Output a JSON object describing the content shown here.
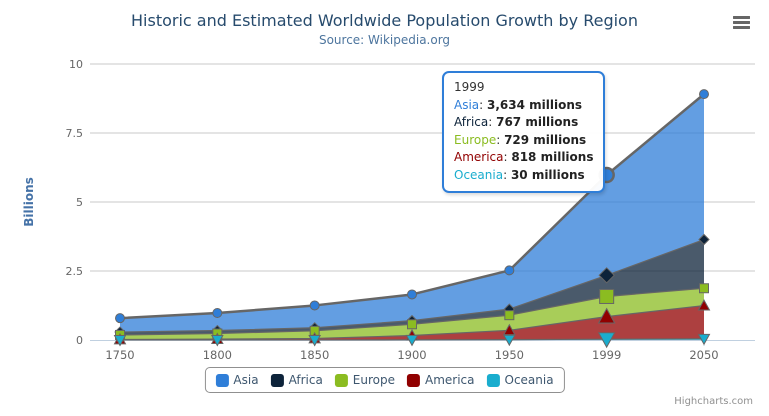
{
  "title": "Historic and Estimated Worldwide Population Growth by Region",
  "subtitle": "Source: Wikipedia.org",
  "credits": "Highcharts.com",
  "export_menu_icon": "hamburger-menu",
  "colors": {
    "title": "#274b6d",
    "subtitle": "#4d759e",
    "axis_label": "#666666",
    "y_axis_title": "#4572a7",
    "grid": "#c8c8c8",
    "axis_line": "#c0d0e0",
    "series_line": "#666666",
    "legend_text": "#3e576f",
    "tooltip_border": "#2f7ed8",
    "tooltip_text": "#333333"
  },
  "tooltip": {
    "header": "1999",
    "unit": "millions",
    "rows": [
      {
        "name": "Asia",
        "value": "3,634 millions",
        "color": "#2f7ed8"
      },
      {
        "name": "Africa",
        "value": "767 millions",
        "color": "#0d233a"
      },
      {
        "name": "Europe",
        "value": "729 millions",
        "color": "#8bbc21"
      },
      {
        "name": "America",
        "value": "818 millions",
        "color": "#910000"
      },
      {
        "name": "Oceania",
        "value": "30 millions",
        "color": "#1aadce"
      }
    ]
  },
  "legend": {
    "items": [
      {
        "label": "Asia",
        "color": "#2f7ed8"
      },
      {
        "label": "Africa",
        "color": "#0d233a"
      },
      {
        "label": "Europe",
        "color": "#8bbc21"
      },
      {
        "label": "America",
        "color": "#910000"
      },
      {
        "label": "Oceania",
        "color": "#1aadce"
      }
    ]
  },
  "chart_data": {
    "type": "area",
    "stacking": "normal",
    "title": "Historic and Estimated Worldwide Population Growth by Region",
    "subtitle": "Source: Wikipedia.org",
    "xlabel": "",
    "ylabel": "Billions",
    "unit": "millions",
    "categories": [
      "1750",
      "1800",
      "1850",
      "1900",
      "1950",
      "1999",
      "2050"
    ],
    "series": [
      {
        "name": "Asia",
        "color": "#2f7ed8",
        "marker": "circle",
        "values": [
          502,
          635,
          809,
          947,
          1402,
          3634,
          5268
        ]
      },
      {
        "name": "Africa",
        "color": "#0d233a",
        "marker": "diamond",
        "values": [
          106,
          107,
          111,
          133,
          221,
          767,
          1766
        ]
      },
      {
        "name": "Europe",
        "color": "#8bbc21",
        "marker": "square",
        "values": [
          163,
          203,
          276,
          408,
          547,
          729,
          628
        ]
      },
      {
        "name": "America",
        "color": "#910000",
        "marker": "triangle",
        "values": [
          18,
          31,
          54,
          156,
          339,
          818,
          1201
        ]
      },
      {
        "name": "Oceania",
        "color": "#1aadce",
        "marker": "triangle-down",
        "values": [
          2,
          2,
          2,
          6,
          13,
          30,
          46
        ]
      }
    ],
    "yticks": [
      0,
      2.5,
      5,
      7.5,
      10
    ],
    "ylim": [
      0,
      10
    ],
    "grid": true,
    "legend_position": "bottom",
    "hovered_category": "1999",
    "hover_index": 5,
    "hovered_series": "Asia"
  }
}
